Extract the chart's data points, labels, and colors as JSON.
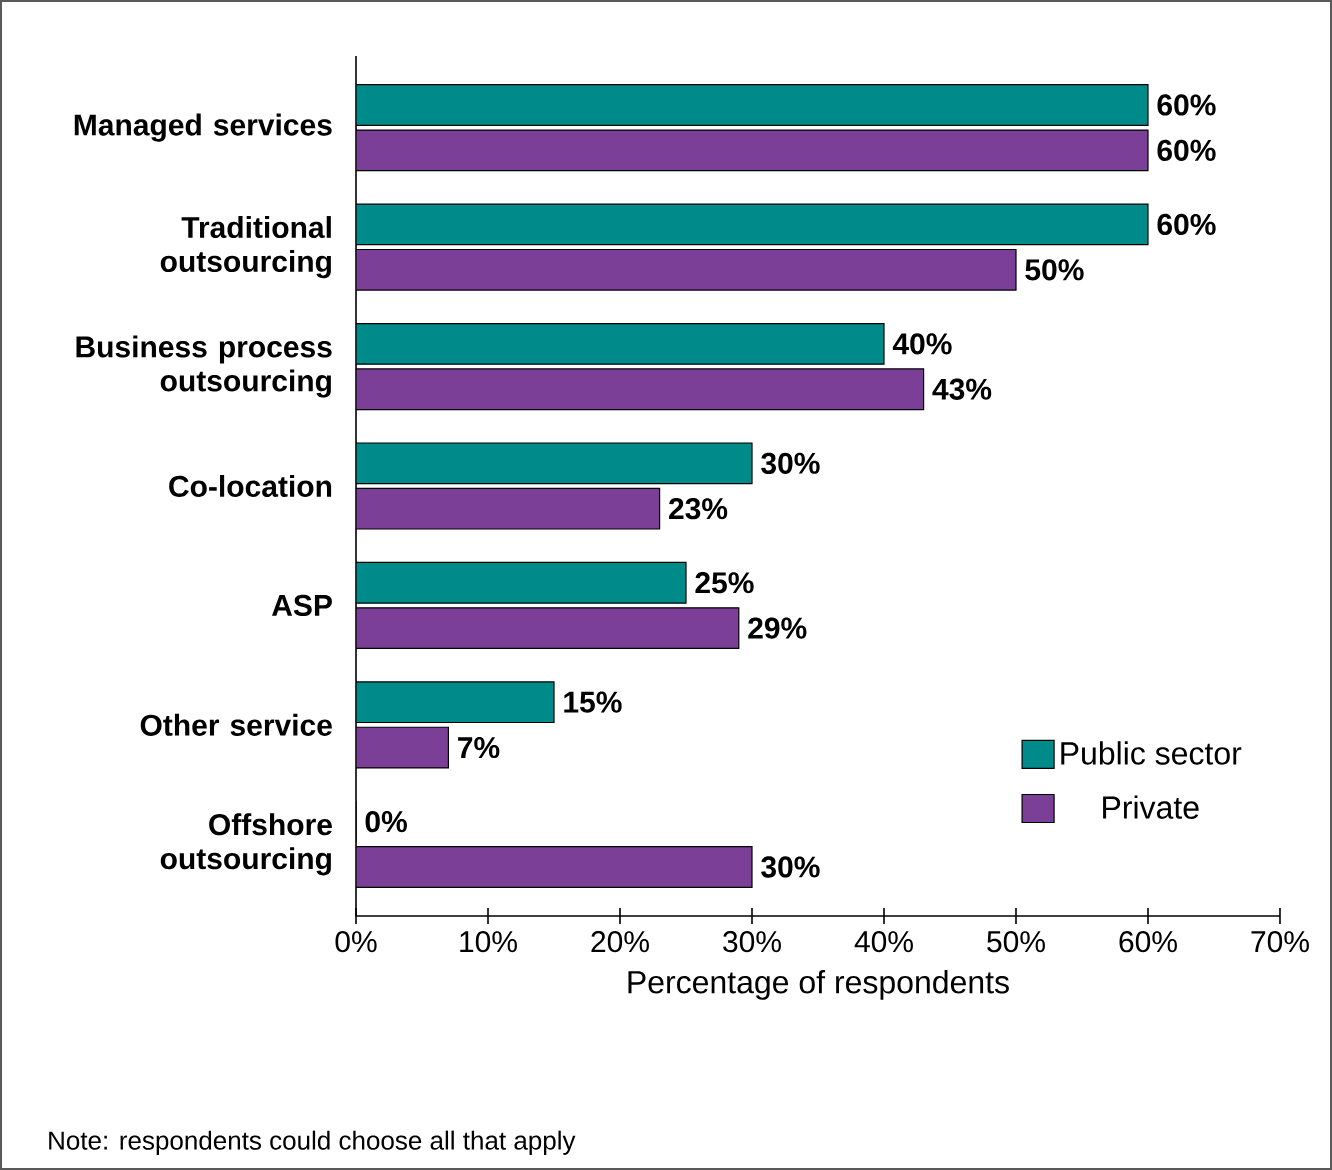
{
  "chart_data": {
    "type": "bar",
    "orientation": "horizontal",
    "categories": [
      "Managed services",
      "Traditional outsourcing",
      "Business process outsourcing",
      "Co-location",
      "ASP",
      "Other service",
      "Offshore outsourcing"
    ],
    "series": [
      {
        "name": "Public sector",
        "color": "#008b8b",
        "values": [
          60,
          60,
          40,
          30,
          25,
          15,
          0
        ],
        "value_labels": [
          "60%",
          "60%",
          "40%",
          "30%",
          "25%",
          "15%",
          "0%"
        ]
      },
      {
        "name": "Private",
        "color": "#7b3f98",
        "values": [
          60,
          50,
          43,
          23,
          29,
          7,
          30
        ],
        "value_labels": [
          "60%",
          "50%",
          "43%",
          "23%",
          "29%",
          "7%",
          "30%"
        ]
      }
    ],
    "xlim": [
      0,
      70
    ],
    "xticks": [
      {
        "value": 0,
        "label": "0%"
      },
      {
        "value": 10,
        "label": "10%"
      },
      {
        "value": 20,
        "label": "20%"
      },
      {
        "value": 30,
        "label": "30%"
      },
      {
        "value": 40,
        "label": "40%"
      },
      {
        "value": 50,
        "label": "50%"
      },
      {
        "value": 60,
        "label": "60%"
      },
      {
        "value": 70,
        "label": "70%"
      }
    ],
    "xlabel": "Percentage of respondents",
    "annotations": [
      "Note: respondents could choose all that apply"
    ],
    "legend": "bottom right",
    "grid": false
  }
}
